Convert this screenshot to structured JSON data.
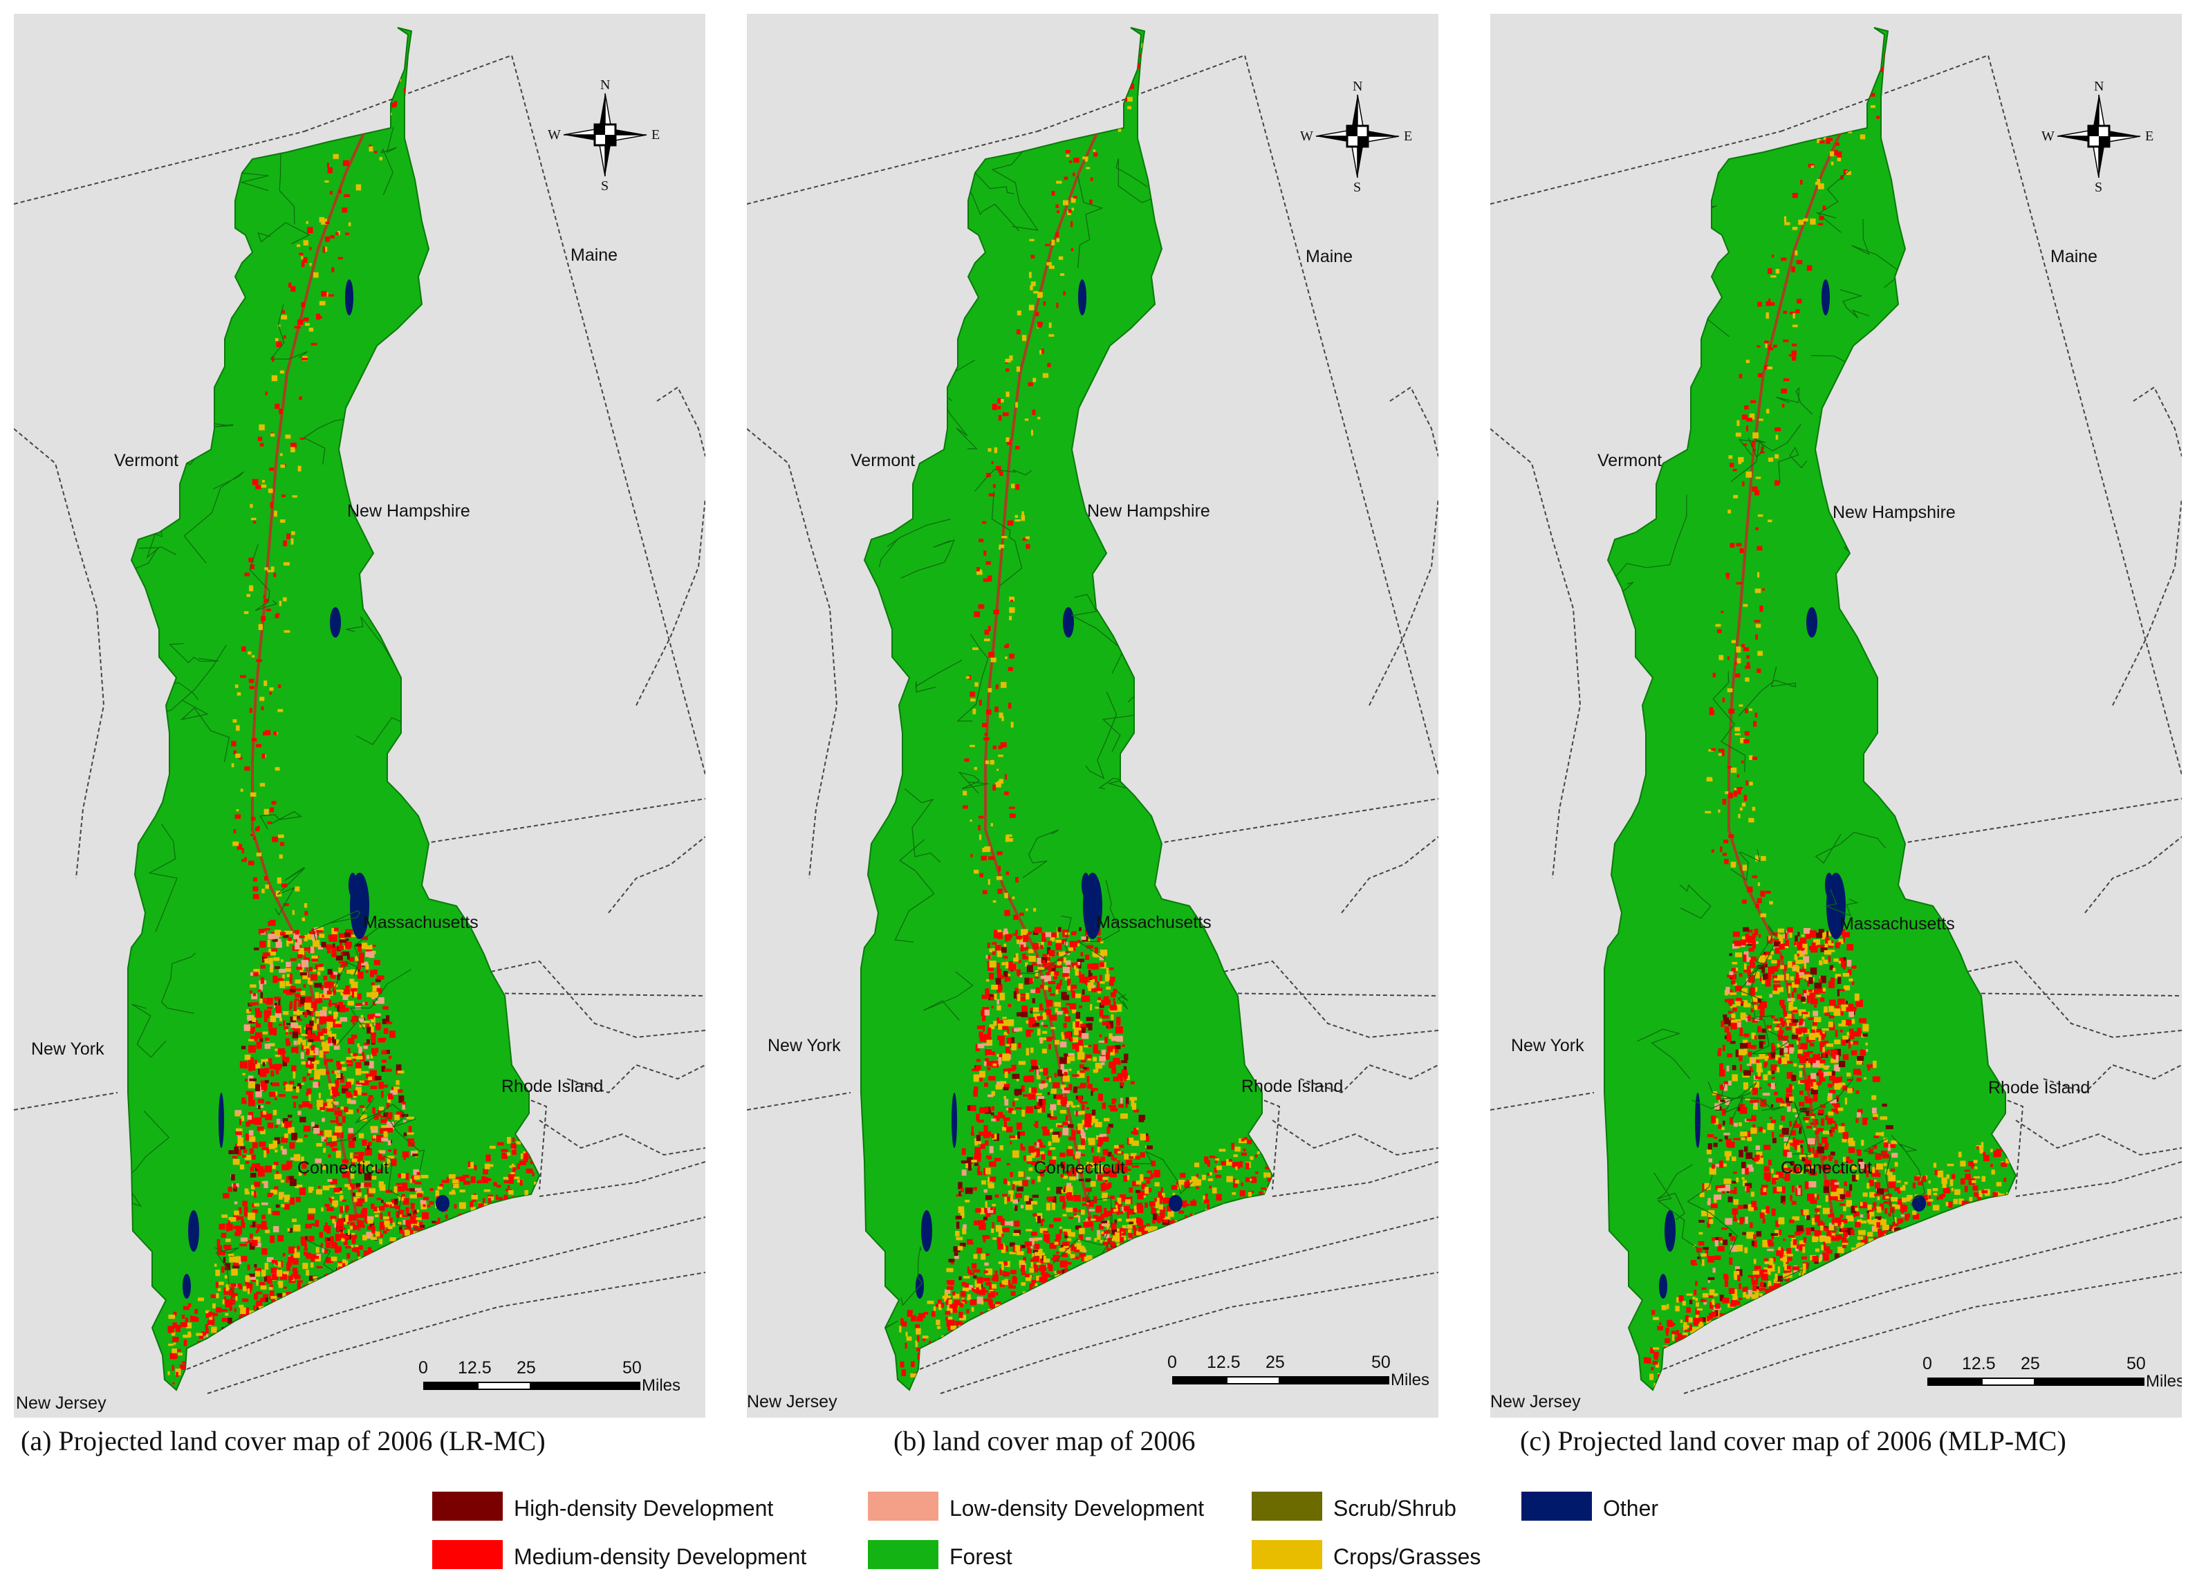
{
  "panels": [
    {
      "id": "a",
      "caption": "(a) Projected land cover map of 2006 (LR-MC)",
      "labels": {
        "maine": "Maine",
        "vermont": "Vermont",
        "new_hampshire": "New Hampshire",
        "massachusetts": "Massachusetts",
        "new_york": "New York",
        "rhode_island": "Rhode Island",
        "connecticut": "Connecticut",
        "new_jersey": "New Jersey"
      },
      "compass": {
        "n": "N",
        "s": "S",
        "e": "E",
        "w": "W"
      },
      "scale": {
        "t0": "0",
        "t1": "12.5",
        "t2": "25",
        "t3": "50",
        "unit": "Miles"
      }
    },
    {
      "id": "b",
      "caption": "(b) land cover map of 2006",
      "labels": {
        "maine": "Maine",
        "vermont": "Vermont",
        "new_hampshire": "New Hampshire",
        "massachusetts": "Massachusetts",
        "new_york": "New York",
        "rhode_island": "Rhode Island",
        "connecticut": "Connecticut",
        "new_jersey": "New Jersey"
      },
      "compass": {
        "n": "N",
        "s": "S",
        "e": "E",
        "w": "W"
      },
      "scale": {
        "t0": "0",
        "t1": "12.5",
        "t2": "25",
        "t3": "50",
        "unit": "Miles"
      }
    },
    {
      "id": "c",
      "caption": "(c) Projected land cover map of 2006 (MLP-MC)",
      "labels": {
        "maine": "Maine",
        "vermont": "Vermont",
        "new_hampshire": "New Hampshire",
        "massachusetts": "Massachusetts",
        "new_york": "New York",
        "rhode_island": "Rhode Island",
        "connecticut": "Connecticut",
        "new_jersey": "New Jersey"
      },
      "compass": {
        "n": "N",
        "s": "S",
        "e": "E",
        "w": "W"
      },
      "scale": {
        "t0": "0",
        "t1": "12.5",
        "t2": "25",
        "t3": "50",
        "unit": "Miles"
      }
    }
  ],
  "legend": [
    {
      "label": "High-density Development",
      "color": "#7a0000"
    },
    {
      "label": "Low-density Development",
      "color": "#f4a088"
    },
    {
      "label": "Scrub/Shrub",
      "color": "#6b6b00"
    },
    {
      "label": "Other",
      "color": "#00196b"
    },
    {
      "label": "Medium-density Development",
      "color": "#ff0000"
    },
    {
      "label": "Forest",
      "color": "#13b313"
    },
    {
      "label": "Crops/Grasses",
      "color": "#e8bd00"
    }
  ],
  "colors": {
    "background": "#e1e1e1",
    "forest": "#13b313",
    "boundary": "#444444",
    "development": "#ff0000",
    "crops": "#e8bd00",
    "water": "#00196b"
  }
}
